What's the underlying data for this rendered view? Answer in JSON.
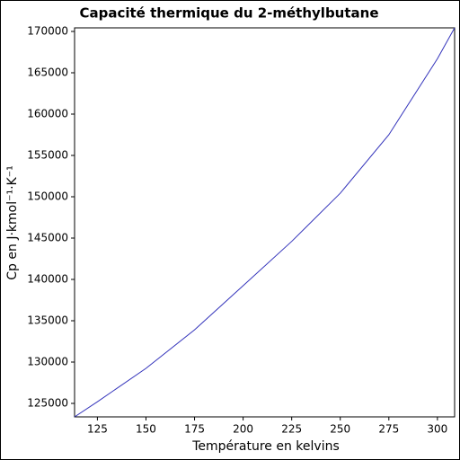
{
  "chart_data": {
    "type": "line",
    "title": "Capacité thermique du 2-méthylbutane",
    "x_label": "Température en kelvins",
    "y_label": "Cp en J·kmol⁻¹·K⁻¹",
    "x": [
      113.25,
      125,
      150,
      175,
      200,
      225,
      250,
      275,
      300,
      308.85
    ],
    "series": [
      {
        "color": "#3333bb",
        "values": [
          123370,
          125200,
          129240,
          133900,
          139240,
          144600,
          150430,
          157500,
          166700,
          170435
        ]
      }
    ],
    "xlim": [
      113.25,
      308.85
    ],
    "xticks": [
      125,
      150,
      175,
      200,
      225,
      250,
      275,
      300
    ],
    "ylim": [
      123370,
      170435
    ],
    "yticks": [
      125000,
      130000,
      135000,
      140000,
      145000,
      150000,
      155000,
      160000,
      165000,
      170000
    ]
  }
}
